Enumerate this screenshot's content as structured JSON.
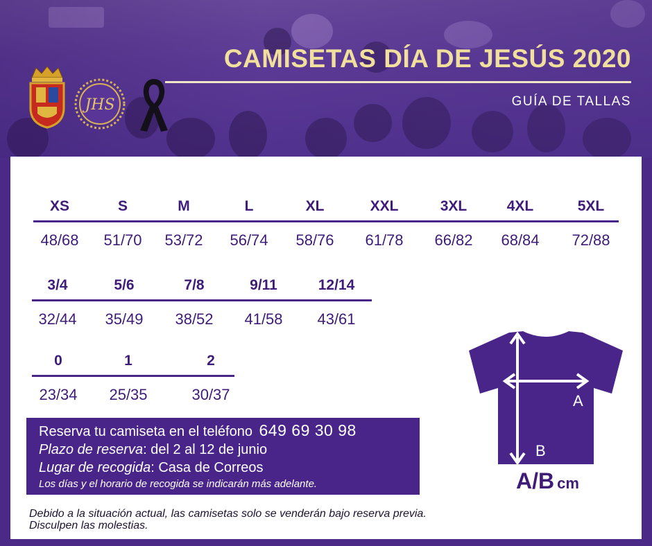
{
  "header": {
    "title": "CAMISETAS DÍA DE JESÚS 2020",
    "subtitle": "GUÍA DE TALLAS"
  },
  "adult_sizes": [
    {
      "label": "XS",
      "value": "48/68"
    },
    {
      "label": "S",
      "value": "51/70"
    },
    {
      "label": "M",
      "value": "53/72"
    },
    {
      "label": "L",
      "value": "56/74"
    },
    {
      "label": "XL",
      "value": "58/76"
    },
    {
      "label": "XXL",
      "value": "61/78"
    },
    {
      "label": "3XL",
      "value": "66/82"
    },
    {
      "label": "4XL",
      "value": "68/84"
    },
    {
      "label": "5XL",
      "value": "72/88"
    }
  ],
  "child_sizes": [
    {
      "label": "3/4",
      "value": "32/44"
    },
    {
      "label": "5/6",
      "value": "35/49"
    },
    {
      "label": "7/8",
      "value": "38/52"
    },
    {
      "label": "9/11",
      "value": "41/58"
    },
    {
      "label": "12/14",
      "value": "43/61"
    }
  ],
  "baby_sizes": [
    {
      "label": "0",
      "value": "23/34"
    },
    {
      "label": "1",
      "value": "25/35"
    },
    {
      "label": "2",
      "value": "30/37"
    }
  ],
  "reservation": {
    "line1": "Reserva tu camiseta en el teléfono",
    "phone": "649 69 30 98",
    "deadline_label": "Plazo de reserva",
    "deadline_value": ": del 2 al 12 de junio",
    "pickup_label": "Lugar de recogida",
    "pickup_value": ": Casa de Correos",
    "note": "Los días y el horario de recogida se indicarán más adelante."
  },
  "notice": {
    "line1": "Debido a la situación actual, las camisetas solo se venderán bajo reserva previa.",
    "line2": "Disculpen las molestias."
  },
  "diagram": {
    "label_a": "A",
    "label_b": "B",
    "measure": "A/B",
    "unit": "cm"
  },
  "emblems": {
    "monogram": "JHS"
  },
  "colors": {
    "purple": "#4a2589",
    "title_gold": "#f1df9d",
    "text_purple": "#3e1c78"
  }
}
